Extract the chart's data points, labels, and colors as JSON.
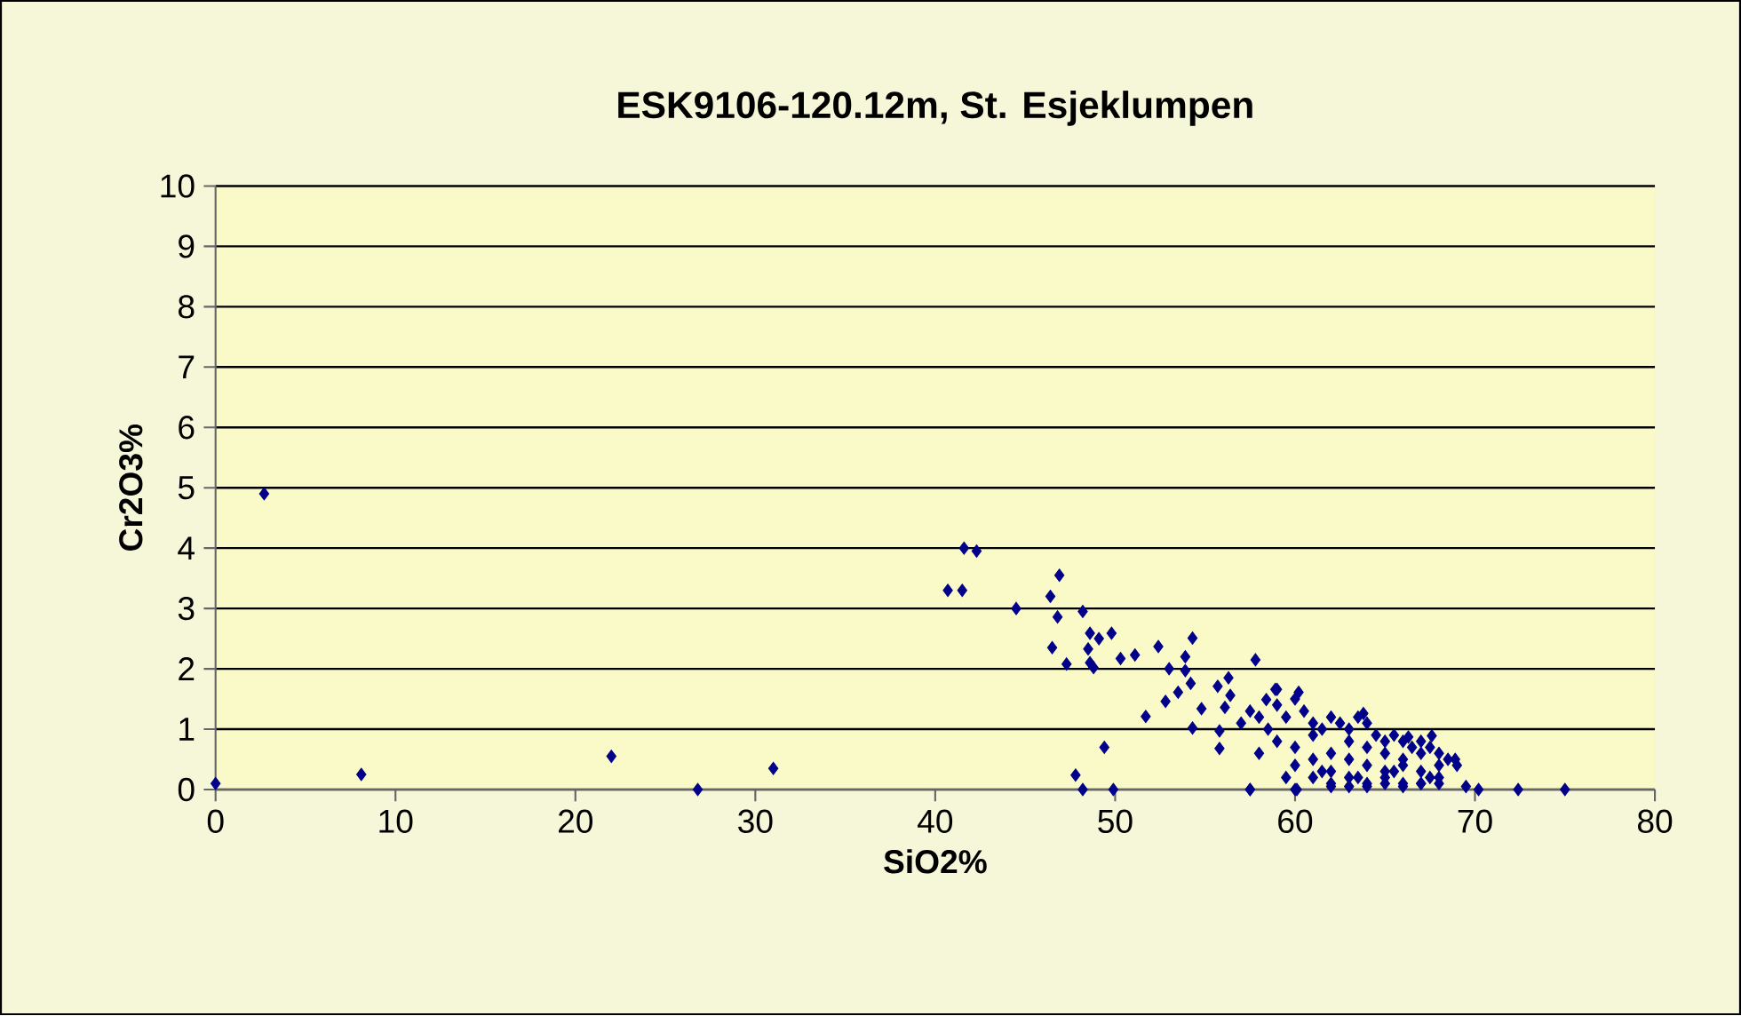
{
  "chart_data": {
    "type": "scatter",
    "title": "ESK9106-120.12m, St. Esjeklumpen",
    "xlabel": "SiO2%",
    "ylabel": "Cr2O3%",
    "xlim": [
      0,
      80
    ],
    "ylim": [
      0,
      10
    ],
    "xticks": [
      0,
      10,
      20,
      30,
      40,
      50,
      60,
      70,
      80
    ],
    "yticks": [
      0,
      1,
      2,
      3,
      4,
      5,
      6,
      7,
      8,
      9,
      10
    ],
    "grid": "y",
    "marker": "diamond",
    "series": [
      {
        "color": "#00008b",
        "x": [
          0,
          2.7,
          8.1,
          22,
          26.8,
          31,
          41.6,
          42.3,
          40.7,
          41.5,
          46.9,
          46.4,
          44.5,
          46.8,
          48.2,
          46.5,
          47.3,
          48.6,
          49.1,
          49.8,
          48.5,
          48.6,
          48.8,
          50.3,
          51.1,
          52.4,
          54.3,
          53.9,
          53,
          53.9,
          54.2,
          53.5,
          52.8,
          51.7,
          54.3,
          54.8,
          55.7,
          56.3,
          57.8,
          59,
          56.4,
          56.1,
          55.8,
          55.8,
          49.4,
          47.8,
          48.2,
          49.9,
          57.5,
          60,
          58.9,
          60.2,
          58.4,
          63.8,
          67.6,
          66.3,
          68.9,
          57.5,
          60.1,
          70.2,
          72.4,
          75,
          57,
          57.5,
          58,
          58.5,
          59,
          59.5,
          60,
          60.5,
          61,
          61.5,
          62,
          62.5,
          63,
          63.5,
          64,
          64.5,
          65,
          65.5,
          66,
          66.5,
          67,
          67.5,
          68,
          68.5,
          69,
          58,
          59,
          60,
          61,
          62,
          63,
          64,
          65,
          66,
          67,
          68,
          60,
          61,
          62,
          63,
          64,
          65,
          66,
          67,
          68,
          61,
          62,
          63,
          64,
          65,
          66,
          67,
          62,
          63,
          64,
          65,
          66,
          67,
          68,
          69.5,
          59.5,
          61.5,
          63.5,
          65.5,
          67.5
        ],
        "values": [
          0.1,
          4.9,
          0.25,
          0.55,
          0,
          0.35,
          4.0,
          3.95,
          3.3,
          3.3,
          3.55,
          3.2,
          3.0,
          2.86,
          2.95,
          2.35,
          2.08,
          2.59,
          2.5,
          2.59,
          2.33,
          2.1,
          2.02,
          2.17,
          2.23,
          2.37,
          2.51,
          2.2,
          2.0,
          1.97,
          1.76,
          1.61,
          1.46,
          1.21,
          1.02,
          1.34,
          1.71,
          1.85,
          2.15,
          1.66,
          1.56,
          1.36,
          0.97,
          0.68,
          0.7,
          0.24,
          0,
          0,
          0,
          0,
          1.66,
          1.61,
          1.49,
          1.26,
          0.89,
          0.87,
          0.5,
          0,
          0,
          0,
          0,
          0,
          1.1,
          1.3,
          1.2,
          1.0,
          1.4,
          1.2,
          1.5,
          1.3,
          1.1,
          1.0,
          1.2,
          1.1,
          1.0,
          1.2,
          1.1,
          0.9,
          0.8,
          0.9,
          0.8,
          0.7,
          0.8,
          0.7,
          0.6,
          0.5,
          0.4,
          0.6,
          0.8,
          0.7,
          0.9,
          0.6,
          0.8,
          0.7,
          0.6,
          0.5,
          0.6,
          0.4,
          0.4,
          0.5,
          0.3,
          0.5,
          0.4,
          0.3,
          0.4,
          0.3,
          0.2,
          0.2,
          0.1,
          0.2,
          0.1,
          0.2,
          0.1,
          0.1,
          0.05,
          0.05,
          0.05,
          0.1,
          0.05,
          0.1,
          0.1,
          0.05,
          0.2,
          0.3,
          0.2,
          0.3,
          0.2
        ]
      }
    ]
  }
}
